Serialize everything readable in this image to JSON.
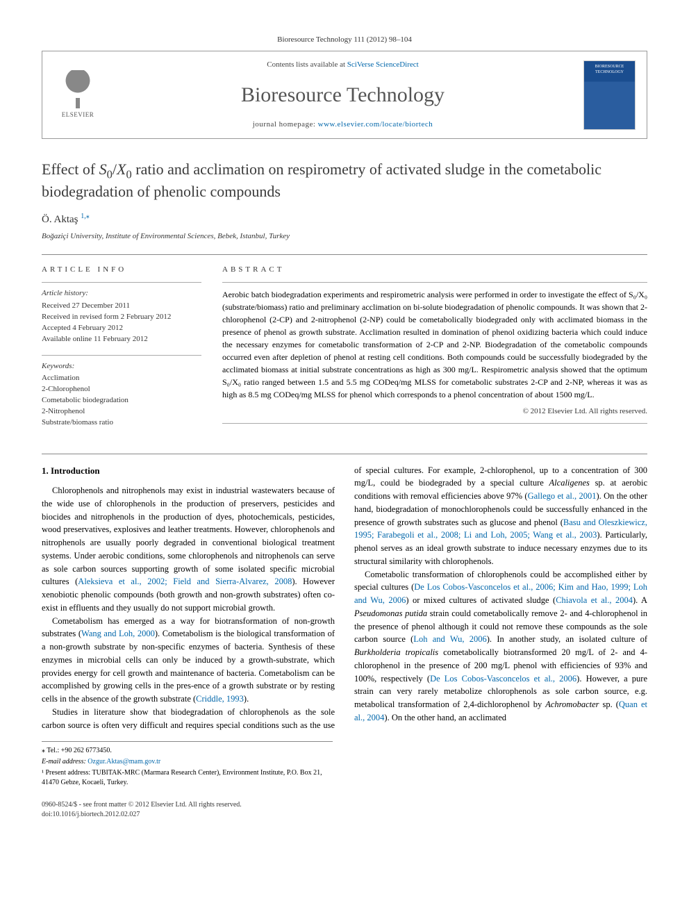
{
  "header": {
    "citation": "Bioresource Technology 111 (2012) 98–104",
    "contents_prefix": "Contents lists available at ",
    "contents_link": "SciVerse ScienceDirect",
    "journal_name": "Bioresource Technology",
    "homepage_prefix": "journal homepage: ",
    "homepage_url": "www.elsevier.com/locate/biortech",
    "publisher": "ELSEVIER",
    "cover_label": "BIORESOURCE TECHNOLOGY"
  },
  "title": {
    "line1": "Effect of ",
    "var1": "S",
    "sub1": "0",
    "slash": "/",
    "var2": "X",
    "sub2": "0",
    "line2": " ratio and acclimation on respirometry of activated sludge in the cometabolic biodegradation of phenolic compounds"
  },
  "author": {
    "name": "Ö. Aktaş",
    "sup": "1,",
    "star": "⁎"
  },
  "affiliation": "Boğaziçi University, Institute of Environmental Sciences, Bebek, Istanbul, Turkey",
  "article_info": {
    "heading": "ARTICLE INFO",
    "history_label": "Article history:",
    "received": "Received 27 December 2011",
    "revised": "Received in revised form 2 February 2012",
    "accepted": "Accepted 4 February 2012",
    "online": "Available online 11 February 2012",
    "keywords_label": "Keywords:",
    "kw1": "Acclimation",
    "kw2": "2-Chlorophenol",
    "kw3": "Cometabolic biodegradation",
    "kw4": "2-Nitrophenol",
    "kw5": "Substrate/biomass ratio"
  },
  "abstract": {
    "heading": "ABSTRACT",
    "text": "Aerobic batch biodegradation experiments and respirometric analysis were performed in order to investigate the effect of S₀/X₀ (substrate/biomass) ratio and preliminary acclimation on bi-solute biodegradation of phenolic compounds. It was shown that 2-chlorophenol (2-CP) and 2-nitrophenol (2-NP) could be cometabolically biodegraded only with acclimated biomass in the presence of phenol as growth substrate. Acclimation resulted in domination of phenol oxidizing bacteria which could induce the necessary enzymes for cometabolic transformation of 2-CP and 2-NP. Biodegradation of the cometabolic compounds occurred even after depletion of phenol at resting cell conditions. Both compounds could be successfully biodegraded by the acclimated biomass at initial substrate concentrations as high as 300 mg/L. Respirometric analysis showed that the optimum S₀/X₀ ratio ranged between 1.5 and 5.5 mg CODeq/mg MLSS for cometabolic substrates 2-CP and 2-NP, whereas it was as high as 8.5 mg CODeq/mg MLSS for phenol which corresponds to a phenol concentration of about 1500 mg/L.",
    "copyright": "© 2012 Elsevier Ltd. All rights reserved."
  },
  "body": {
    "section1_heading": "1. Introduction",
    "p1": "Chlorophenols and nitrophenols may exist in industrial wastewaters because of the wide use of chlorophenols in the production of preservers, pesticides and biocides and nitrophenols in the production of dyes, photochemicals, pesticides, wood preservatives, explosives and leather treatments. However, chlorophenols and nitrophenols are usually poorly degraded in conventional biological treatment systems. Under aerobic conditions, some chlorophenols and nitrophenols can serve as sole carbon sources supporting growth of some isolated specific microbial cultures (",
    "p1_ref1": "Aleksieva et al., 2002; Field and Sierra-Alvarez, 2008",
    "p1_cont": "). However xenobiotic phenolic compounds (both growth and non-growth substrates) often co-exist in effluents and they usually do not support microbial growth.",
    "p2": "Cometabolism has emerged as a way for biotransformation of non-growth substrates (",
    "p2_ref1": "Wang and Loh, 2000",
    "p2_cont": "). Cometabolism is the biological transformation of a non-growth substrate by non-specific enzymes of bacteria. Synthesis of these enzymes in microbial cells can only be induced by a growth-substrate, which provides energy for cell growth and maintenance of bacteria. Cometabolism can be accomplished by growing cells in the pres-",
    "p2_col2": "ence of a growth substrate or by resting cells in the absence of the growth substrate (",
    "p2_ref2": "Criddle, 1993",
    "p2_col2_end": ").",
    "p3": "Studies in literature show that biodegradation of chlorophenols as the sole carbon source is often very difficult and requires special conditions such as the use of special cultures. For example, 2-chlorophenol, up to a concentration of 300 mg/L, could be biodegraded by a special culture ",
    "p3_italic": "Alcaligenes",
    "p3_cont1": " sp. at aerobic conditions with removal efficiencies above 97% (",
    "p3_ref1": "Gallego et al., 2001",
    "p3_cont2": "). On the other hand, biodegradation of monochlorophenols could be successfully enhanced in the presence of growth substrates such as glucose and phenol (",
    "p3_ref2": "Basu and Oleszkiewicz, 1995; Farabegoli et al., 2008; Li and Loh, 2005; Wang et al., 2003",
    "p3_cont3": "). Particularly, phenol serves as an ideal growth substrate to induce necessary enzymes due to its structural similarity with chlorophenols.",
    "p4": "Cometabolic transformation of chlorophenols could be accomplished either by special cultures (",
    "p4_ref1": "De Los Cobos-Vasconcelos et al., 2006; Kim and Hao, 1999; Loh and Wu, 2006",
    "p4_cont1": ") or mixed cultures of activated sludge (",
    "p4_ref2": "Chiavola et al., 2004",
    "p4_cont2": "). A ",
    "p4_italic1": "Pseudomonas putida",
    "p4_cont3": " strain could cometabolically remove 2- and 4-chlorophenol in the presence of phenol although it could not remove these compounds as the sole carbon source (",
    "p4_ref3": "Loh and Wu, 2006",
    "p4_cont4": "). In another study, an isolated culture of ",
    "p4_italic2": "Burkholderia tropicalis",
    "p4_cont5": " cometabolically biotransformed 20 mg/L of 2- and 4-chlorophenol in the presence of 200 mg/L phenol with efficiencies of 93% and 100%, respectively (",
    "p4_ref4": "De Los Cobos-Vasconcelos et al., 2006",
    "p4_cont6": "). However, a pure strain can very rarely metabolize chlorophenols as sole carbon source, e.g. metabolical transformation of 2,4-dichlorophenol by ",
    "p4_italic3": "Achromobacter",
    "p4_cont7": " sp. (",
    "p4_ref5": "Quan et al., 2004",
    "p4_cont8": "). On the other hand, an acclimated"
  },
  "footnotes": {
    "tel_label": "⁎ Tel.: ",
    "tel": "+90 262 6773450.",
    "email_label": "E-mail address: ",
    "email": "Ozgur.Aktas@mam.gov.tr",
    "note1_label": "¹ ",
    "note1": "Present address: TUBITAK-MRC (Marmara Research Center), Environment Institute, P.O. Box 21, 41470 Gebze, Kocaeli, Turkey."
  },
  "footer": {
    "left1": "0960-8524/$ - see front matter © 2012 Elsevier Ltd. All rights reserved.",
    "left2": "doi:10.1016/j.biortech.2012.02.027"
  },
  "colors": {
    "link": "#0066aa",
    "text": "#000000",
    "gray": "#555555",
    "border": "#999999"
  }
}
